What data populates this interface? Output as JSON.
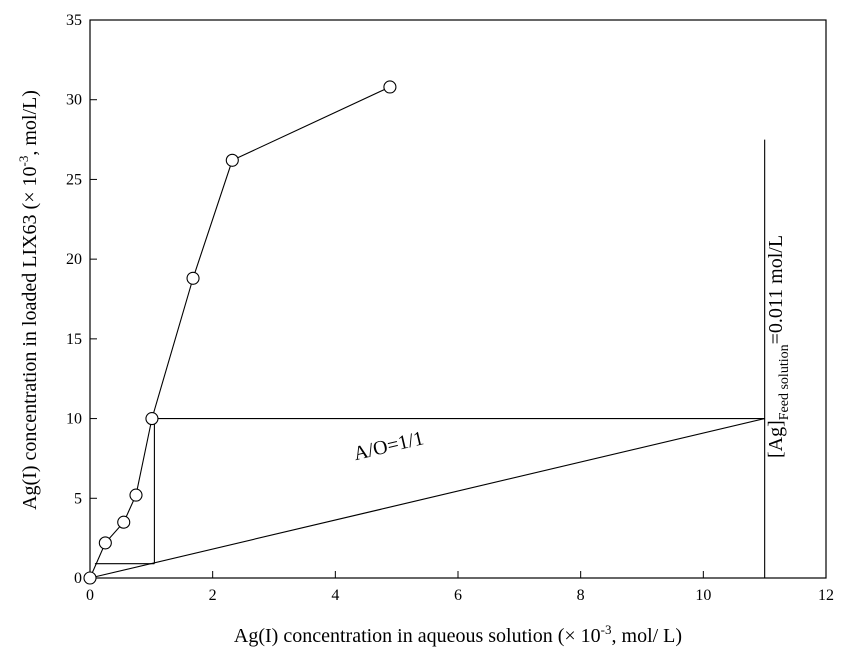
{
  "chart_data": {
    "type": "line",
    "x_label": {
      "main": "Ag(I) concentration in aqueous solution (× 10",
      "sup": "-3",
      "tail": ", mol/ L)"
    },
    "y_label": {
      "main": "Ag(I) concentration in loaded LIX63 (× 10",
      "sup": "-3",
      "tail": ", mol/L)"
    },
    "series": [
      {
        "color": "#000000",
        "marker": "circle",
        "x": [
          0,
          0.25,
          0.55,
          0.75,
          1.01,
          1.68,
          2.32,
          4.89
        ],
        "values": [
          0,
          2.2,
          3.5,
          5.2,
          10,
          18.8,
          26.2,
          30.8
        ]
      }
    ],
    "lines": [
      {
        "x": [
          0,
          11
        ],
        "y": [
          0,
          10
        ]
      },
      {
        "x": [
          1.01,
          11
        ],
        "y": [
          10,
          10
        ]
      },
      {
        "x": [
          1.05,
          1.05
        ],
        "y": [
          10,
          0.9
        ]
      },
      {
        "x": [
          0.08,
          1.05
        ],
        "y": [
          0.9,
          0.9
        ]
      },
      {
        "x": [
          11,
          11
        ],
        "y": [
          0,
          27.5
        ]
      }
    ],
    "annotations": {
      "ratio": "A/O=1/1",
      "feed_main": "[Ag]",
      "feed_sub": "Feed solution",
      "feed_value": "=0.011 mol/L"
    },
    "xlim": [
      0,
      12
    ],
    "xticks": [
      0,
      2,
      4,
      6,
      8,
      10,
      12
    ],
    "ylim": [
      0,
      35
    ],
    "yticks": [
      0,
      5,
      10,
      15,
      20,
      25,
      30,
      35
    ],
    "grid": false
  }
}
